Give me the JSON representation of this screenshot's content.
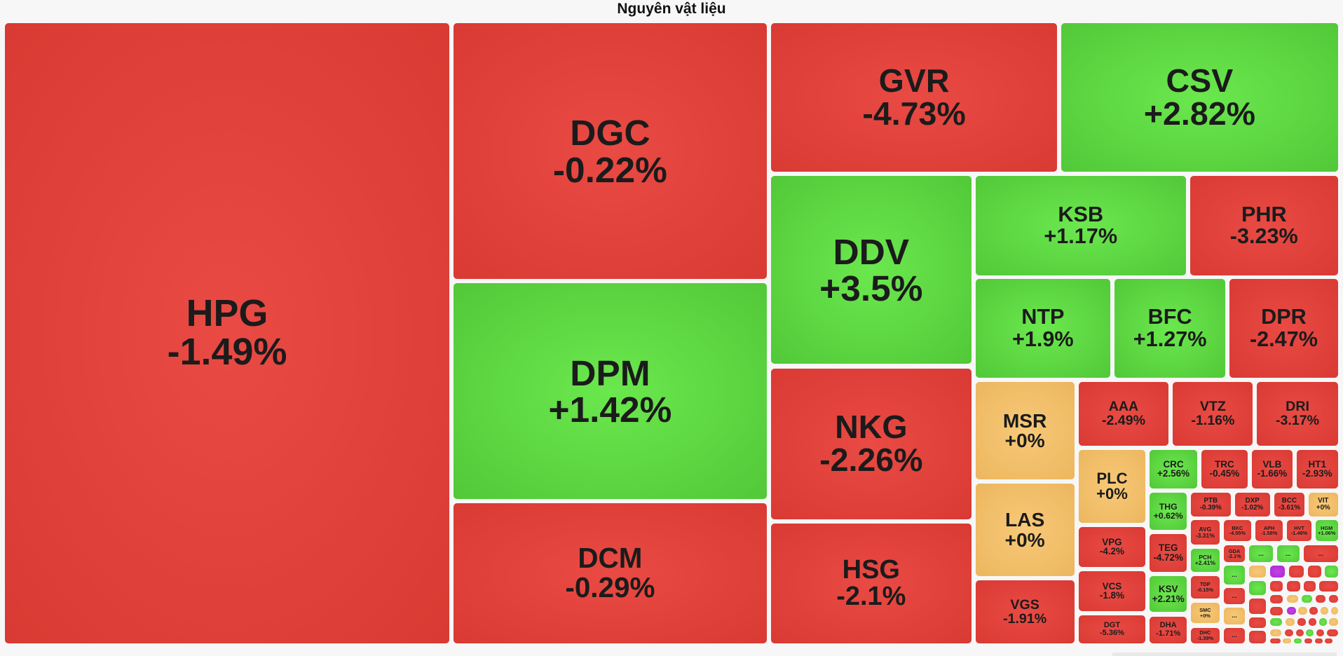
{
  "chart_data": {
    "type": "treemap",
    "title": "Nguyên vật liệu",
    "colors": {
      "negative": "#e3433d",
      "positive": "#5fd843",
      "unchanged": "#f3c06b",
      "ceiling": "#b737dc"
    },
    "tiles": [
      {
        "symbol": "HPG",
        "change": "-1.49%"
      },
      {
        "symbol": "DGC",
        "change": "-0.22%"
      },
      {
        "symbol": "DPM",
        "change": "+1.42%"
      },
      {
        "symbol": "DCM",
        "change": "-0.29%"
      },
      {
        "symbol": "GVR",
        "change": "-4.73%"
      },
      {
        "symbol": "CSV",
        "change": "+2.82%"
      },
      {
        "symbol": "DDV",
        "change": "+3.5%"
      },
      {
        "symbol": "KSB",
        "change": "+1.17%"
      },
      {
        "symbol": "PHR",
        "change": "-3.23%"
      },
      {
        "symbol": "NTP",
        "change": "+1.9%"
      },
      {
        "symbol": "BFC",
        "change": "+1.27%"
      },
      {
        "symbol": "DPR",
        "change": "-2.47%"
      },
      {
        "symbol": "NKG",
        "change": "-2.26%"
      },
      {
        "symbol": "HSG",
        "change": "-2.1%"
      },
      {
        "symbol": "MSR",
        "change": "+0%"
      },
      {
        "symbol": "LAS",
        "change": "+0%"
      },
      {
        "symbol": "VGS",
        "change": "-1.91%"
      },
      {
        "symbol": "AAA",
        "change": "-2.49%"
      },
      {
        "symbol": "VTZ",
        "change": "-1.16%"
      },
      {
        "symbol": "DRI",
        "change": "-3.17%"
      },
      {
        "symbol": "PLC",
        "change": "+0%"
      },
      {
        "symbol": "CRC",
        "change": "+2.56%"
      },
      {
        "symbol": "TRC",
        "change": "-0.45%"
      },
      {
        "symbol": "VLB",
        "change": "-1.66%"
      },
      {
        "symbol": "HT1",
        "change": "-2.93%"
      },
      {
        "symbol": "THG",
        "change": "+0.62%"
      },
      {
        "symbol": "PTB",
        "change": "-0.39%"
      },
      {
        "symbol": "DXP",
        "change": "-1.02%"
      },
      {
        "symbol": "BCC",
        "change": "-3.61%"
      },
      {
        "symbol": "VIT",
        "change": "+0%"
      },
      {
        "symbol": "VPG",
        "change": "-4.2%"
      },
      {
        "symbol": "TEG",
        "change": "-4.72%"
      },
      {
        "symbol": "AVG",
        "change": "-3.31%"
      },
      {
        "symbol": "BKC",
        "change": "-4.55%"
      },
      {
        "symbol": "APH",
        "change": "-1.58%"
      },
      {
        "symbol": "HVT",
        "change": "-1.48%"
      },
      {
        "symbol": "HGM",
        "change": "+1.06%"
      },
      {
        "symbol": "PCH",
        "change": "+2.41%"
      },
      {
        "symbol": "GDA",
        "change": "-2.1%"
      },
      {
        "symbol": "VCS",
        "change": "-1.8%"
      },
      {
        "symbol": "KSV",
        "change": "+2.21%"
      },
      {
        "symbol": "TDP",
        "change": "-0.15%"
      },
      {
        "symbol": "SMC",
        "change": "+0%"
      },
      {
        "symbol": "DGT",
        "change": "-5.36%"
      },
      {
        "symbol": "DHA",
        "change": "-1.71%"
      },
      {
        "symbol": "DHC",
        "change": "-1.39%"
      }
    ],
    "overflow_label": "..."
  }
}
